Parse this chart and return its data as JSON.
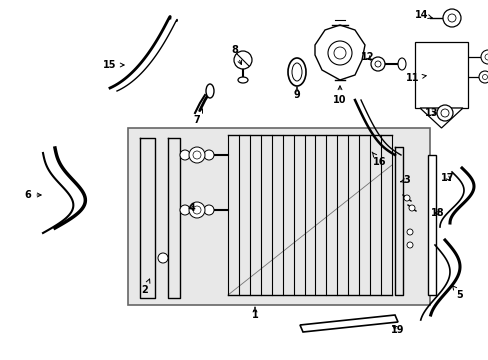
{
  "background_color": "#ffffff",
  "line_color": "#000000",
  "box_fill": "#e8e8e8",
  "box_edge": "#666666",
  "figsize": [
    4.89,
    3.6
  ],
  "dpi": 100
}
